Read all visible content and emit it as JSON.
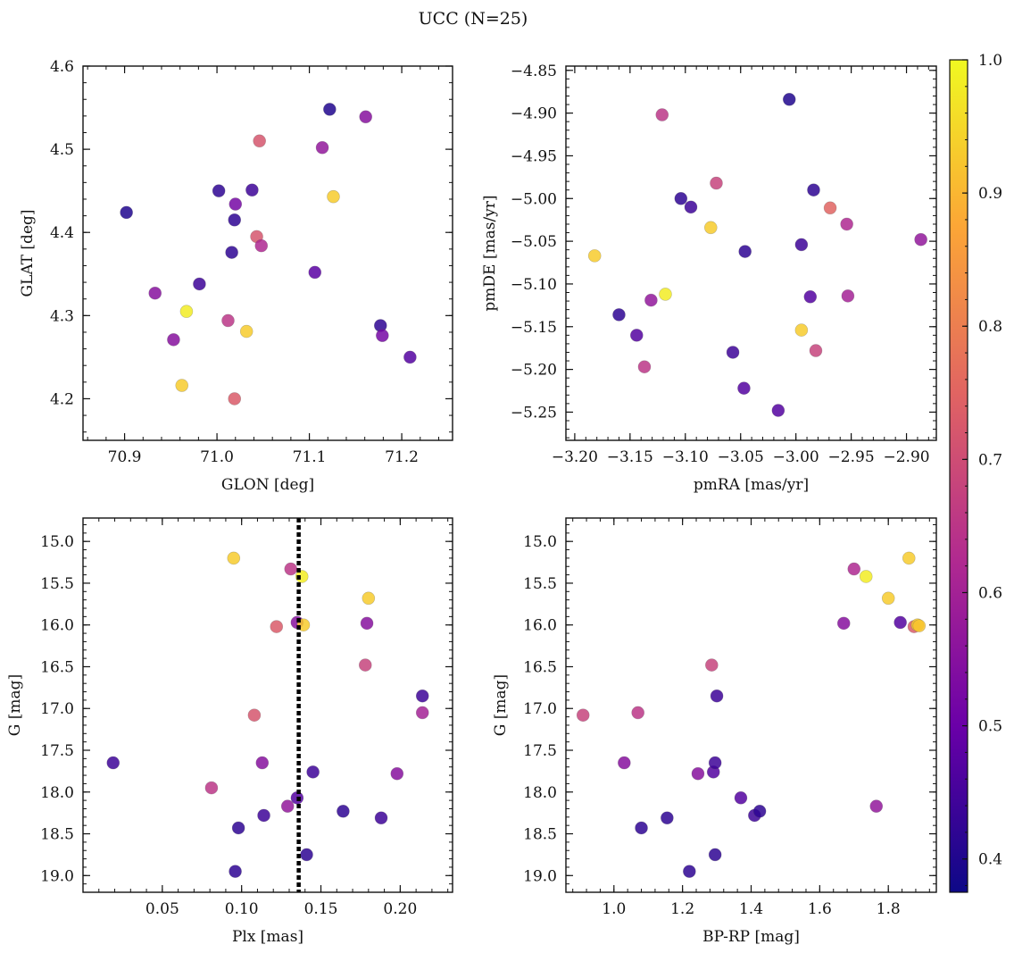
{
  "figure": {
    "suptitle": "UCC (N=25)"
  },
  "colorbar": {
    "ticks": [
      "0.4",
      "0.5",
      "0.6",
      "0.7",
      "0.8",
      "0.9",
      "1.0"
    ],
    "range": [
      0.375,
      1.0
    ],
    "colormap": [
      "#0d0887",
      "#6a00a8",
      "#b12a90",
      "#e16462",
      "#fca636",
      "#f0f921"
    ]
  },
  "chart_data": [
    {
      "type": "scatter",
      "id": "glon-glat",
      "xlabel": "GLON [deg]",
      "ylabel": "GLAT [deg]",
      "xlim": [
        70.855,
        71.255
      ],
      "ylim": [
        4.15,
        4.6
      ],
      "y_inverted": false,
      "xticks": [
        70.9,
        71.0,
        71.1,
        71.2
      ],
      "xtick_labels": [
        "70.9",
        "71.0",
        "71.1",
        "71.2"
      ],
      "yticks": [
        4.2,
        4.3,
        4.4,
        4.5,
        4.6
      ],
      "ytick_labels": [
        "4.2",
        "4.3",
        "4.4",
        "4.5",
        "4.6"
      ],
      "vline": null,
      "points": [
        {
          "x": 70.902,
          "y": 4.424,
          "c": 0.4
        },
        {
          "x": 70.933,
          "y": 4.327,
          "c": 0.55
        },
        {
          "x": 70.953,
          "y": 4.271,
          "c": 0.55
        },
        {
          "x": 70.962,
          "y": 4.216,
          "c": 0.93
        },
        {
          "x": 70.967,
          "y": 4.305,
          "c": 0.98
        },
        {
          "x": 70.981,
          "y": 4.338,
          "c": 0.44
        },
        {
          "x": 71.002,
          "y": 4.45,
          "c": 0.42
        },
        {
          "x": 71.012,
          "y": 4.294,
          "c": 0.65
        },
        {
          "x": 71.016,
          "y": 4.376,
          "c": 0.42
        },
        {
          "x": 71.019,
          "y": 4.415,
          "c": 0.42
        },
        {
          "x": 71.02,
          "y": 4.434,
          "c": 0.52
        },
        {
          "x": 71.019,
          "y": 4.2,
          "c": 0.73
        },
        {
          "x": 71.032,
          "y": 4.281,
          "c": 0.93
        },
        {
          "x": 71.038,
          "y": 4.451,
          "c": 0.44
        },
        {
          "x": 71.043,
          "y": 4.395,
          "c": 0.72
        },
        {
          "x": 71.046,
          "y": 4.51,
          "c": 0.72
        },
        {
          "x": 71.048,
          "y": 4.384,
          "c": 0.62
        },
        {
          "x": 71.106,
          "y": 4.352,
          "c": 0.48
        },
        {
          "x": 71.114,
          "y": 4.502,
          "c": 0.57
        },
        {
          "x": 71.122,
          "y": 4.548,
          "c": 0.4
        },
        {
          "x": 71.126,
          "y": 4.443,
          "c": 0.93
        },
        {
          "x": 71.161,
          "y": 4.539,
          "c": 0.55
        },
        {
          "x": 71.177,
          "y": 4.288,
          "c": 0.42
        },
        {
          "x": 71.179,
          "y": 4.276,
          "c": 0.52
        },
        {
          "x": 71.209,
          "y": 4.25,
          "c": 0.47
        }
      ]
    },
    {
      "type": "scatter",
      "id": "pmra-pmde",
      "xlabel": "pmRA [mas/yr]",
      "ylabel": "pmDE [mas/yr]",
      "xlim": [
        -3.208,
        -2.873
      ],
      "ylim": [
        -5.283,
        -4.845
      ],
      "y_inverted": false,
      "xticks": [
        -3.2,
        -3.15,
        -3.1,
        -3.05,
        -3.0,
        -2.95,
        -2.9
      ],
      "xtick_labels": [
        "−3.20",
        "−3.15",
        "−3.10",
        "−3.05",
        "−3.00",
        "−2.95",
        "−2.90"
      ],
      "yticks": [
        -5.25,
        -5.2,
        -5.15,
        -5.1,
        -5.05,
        -5.0,
        -4.95,
        -4.9,
        -4.85
      ],
      "ytick_labels": [
        "−5.25",
        "−5.20",
        "−5.15",
        "−5.10",
        "−5.05",
        "−5.00",
        "−4.95",
        "−4.90",
        "−4.85"
      ],
      "vline": null,
      "points": [
        {
          "x": -3.182,
          "y": -5.067,
          "c": 0.93
        },
        {
          "x": -3.16,
          "y": -5.136,
          "c": 0.42
        },
        {
          "x": -3.144,
          "y": -5.16,
          "c": 0.47
        },
        {
          "x": -3.137,
          "y": -5.197,
          "c": 0.65
        },
        {
          "x": -3.131,
          "y": -5.119,
          "c": 0.57
        },
        {
          "x": -3.121,
          "y": -4.902,
          "c": 0.65
        },
        {
          "x": -3.118,
          "y": -5.112,
          "c": 0.98
        },
        {
          "x": -3.104,
          "y": -5.0,
          "c": 0.42
        },
        {
          "x": -3.095,
          "y": -5.01,
          "c": 0.44
        },
        {
          "x": -3.077,
          "y": -5.034,
          "c": 0.93
        },
        {
          "x": -3.072,
          "y": -4.982,
          "c": 0.68
        },
        {
          "x": -3.057,
          "y": -5.18,
          "c": 0.44
        },
        {
          "x": -3.047,
          "y": -5.222,
          "c": 0.47
        },
        {
          "x": -3.046,
          "y": -5.062,
          "c": 0.42
        },
        {
          "x": -3.016,
          "y": -5.248,
          "c": 0.47
        },
        {
          "x": -3.006,
          "y": -4.884,
          "c": 0.4
        },
        {
          "x": -2.995,
          "y": -5.054,
          "c": 0.44
        },
        {
          "x": -2.995,
          "y": -5.154,
          "c": 0.93
        },
        {
          "x": -2.984,
          "y": -4.99,
          "c": 0.42
        },
        {
          "x": -2.982,
          "y": -5.178,
          "c": 0.68
        },
        {
          "x": -2.987,
          "y": -5.115,
          "c": 0.47
        },
        {
          "x": -2.969,
          "y": -5.011,
          "c": 0.75
        },
        {
          "x": -2.954,
          "y": -5.03,
          "c": 0.62
        },
        {
          "x": -2.953,
          "y": -5.114,
          "c": 0.6
        },
        {
          "x": -2.887,
          "y": -5.048,
          "c": 0.57
        }
      ]
    },
    {
      "type": "scatter",
      "id": "plx-g",
      "xlabel": "Plx [mas]",
      "ylabel": "G [mag]",
      "xlim": [
        0.0,
        0.233
      ],
      "ylim": [
        14.72,
        19.2
      ],
      "y_inverted": true,
      "xticks": [
        0.05,
        0.1,
        0.15,
        0.2
      ],
      "xtick_labels": [
        "0.05",
        "0.10",
        "0.15",
        "0.20"
      ],
      "yticks": [
        15.0,
        15.5,
        16.0,
        16.5,
        17.0,
        17.5,
        18.0,
        18.5,
        19.0
      ],
      "ytick_labels": [
        "15.0",
        "15.5",
        "16.0",
        "16.5",
        "17.0",
        "17.5",
        "18.0",
        "18.5",
        "19.0"
      ],
      "vline": 0.136,
      "points": [
        {
          "x": 0.019,
          "y": 17.65,
          "c": 0.44
        },
        {
          "x": 0.081,
          "y": 17.95,
          "c": 0.65
        },
        {
          "x": 0.095,
          "y": 15.2,
          "c": 0.93
        },
        {
          "x": 0.096,
          "y": 18.95,
          "c": 0.42
        },
        {
          "x": 0.098,
          "y": 18.43,
          "c": 0.42
        },
        {
          "x": 0.108,
          "y": 17.08,
          "c": 0.72
        },
        {
          "x": 0.113,
          "y": 17.65,
          "c": 0.55
        },
        {
          "x": 0.114,
          "y": 18.28,
          "c": 0.44
        },
        {
          "x": 0.122,
          "y": 16.02,
          "c": 0.73
        },
        {
          "x": 0.129,
          "y": 18.17,
          "c": 0.57
        },
        {
          "x": 0.131,
          "y": 15.33,
          "c": 0.65
        },
        {
          "x": 0.135,
          "y": 15.97,
          "c": 0.55
        },
        {
          "x": 0.135,
          "y": 18.07,
          "c": 0.47
        },
        {
          "x": 0.138,
          "y": 15.42,
          "c": 0.98
        },
        {
          "x": 0.139,
          "y": 16.0,
          "c": 0.93
        },
        {
          "x": 0.141,
          "y": 18.75,
          "c": 0.42
        },
        {
          "x": 0.145,
          "y": 17.76,
          "c": 0.44
        },
        {
          "x": 0.164,
          "y": 18.23,
          "c": 0.42
        },
        {
          "x": 0.178,
          "y": 16.48,
          "c": 0.68
        },
        {
          "x": 0.179,
          "y": 15.98,
          "c": 0.55
        },
        {
          "x": 0.18,
          "y": 15.68,
          "c": 0.93
        },
        {
          "x": 0.188,
          "y": 18.31,
          "c": 0.44
        },
        {
          "x": 0.198,
          "y": 17.78,
          "c": 0.55
        },
        {
          "x": 0.214,
          "y": 16.85,
          "c": 0.44
        },
        {
          "x": 0.214,
          "y": 17.05,
          "c": 0.6
        }
      ]
    },
    {
      "type": "scatter",
      "id": "bprp-g",
      "xlabel": "BP-RP [mag]",
      "ylabel": "G [mag]",
      "xlim": [
        0.86,
        1.94
      ],
      "ylim": [
        14.72,
        19.2
      ],
      "y_inverted": true,
      "xticks": [
        1.0,
        1.2,
        1.4,
        1.6,
        1.8
      ],
      "xtick_labels": [
        "1.0",
        "1.2",
        "1.4",
        "1.6",
        "1.8"
      ],
      "yticks": [
        15.0,
        15.5,
        16.0,
        16.5,
        17.0,
        17.5,
        18.0,
        18.5,
        19.0
      ],
      "ytick_labels": [
        "15.0",
        "15.5",
        "16.0",
        "16.5",
        "17.0",
        "17.5",
        "18.0",
        "18.5",
        "19.0"
      ],
      "vline": null,
      "points": [
        {
          "x": 0.91,
          "y": 17.08,
          "c": 0.68
        },
        {
          "x": 1.03,
          "y": 17.65,
          "c": 0.55
        },
        {
          "x": 1.07,
          "y": 17.05,
          "c": 0.65
        },
        {
          "x": 1.08,
          "y": 18.43,
          "c": 0.42
        },
        {
          "x": 1.155,
          "y": 18.31,
          "c": 0.42
        },
        {
          "x": 1.22,
          "y": 18.95,
          "c": 0.42
        },
        {
          "x": 1.245,
          "y": 17.78,
          "c": 0.55
        },
        {
          "x": 1.285,
          "y": 16.48,
          "c": 0.68
        },
        {
          "x": 1.29,
          "y": 17.76,
          "c": 0.47
        },
        {
          "x": 1.295,
          "y": 18.75,
          "c": 0.42
        },
        {
          "x": 1.295,
          "y": 17.65,
          "c": 0.44
        },
        {
          "x": 1.3,
          "y": 16.85,
          "c": 0.44
        },
        {
          "x": 1.37,
          "y": 18.07,
          "c": 0.47
        },
        {
          "x": 1.41,
          "y": 18.28,
          "c": 0.44
        },
        {
          "x": 1.425,
          "y": 18.23,
          "c": 0.42
        },
        {
          "x": 1.67,
          "y": 15.98,
          "c": 0.55
        },
        {
          "x": 1.7,
          "y": 15.33,
          "c": 0.62
        },
        {
          "x": 1.735,
          "y": 15.42,
          "c": 0.98
        },
        {
          "x": 1.765,
          "y": 18.17,
          "c": 0.57
        },
        {
          "x": 1.8,
          "y": 15.68,
          "c": 0.93
        },
        {
          "x": 1.835,
          "y": 15.97,
          "c": 0.47
        },
        {
          "x": 1.86,
          "y": 15.2,
          "c": 0.93
        },
        {
          "x": 1.875,
          "y": 16.02,
          "c": 0.73
        },
        {
          "x": 1.885,
          "y": 16.0,
          "c": 0.93
        },
        {
          "x": 1.89,
          "y": 16.01,
          "c": 0.92
        }
      ]
    }
  ]
}
